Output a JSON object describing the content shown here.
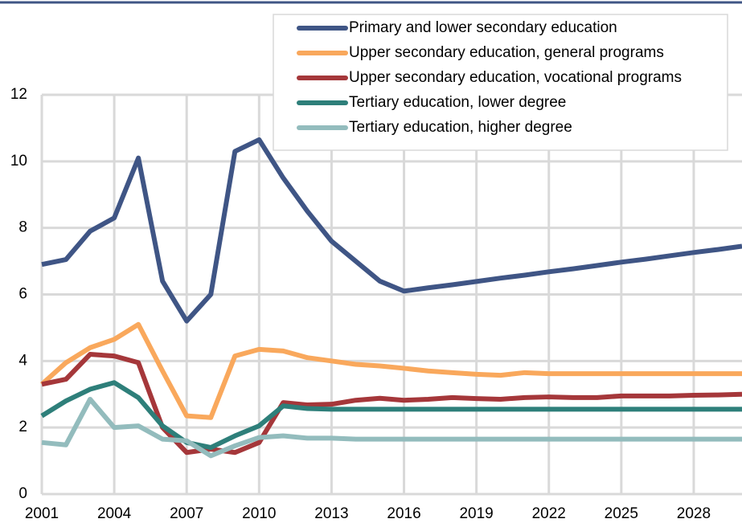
{
  "chart_data": {
    "type": "line",
    "x": [
      2001,
      2002,
      2003,
      2004,
      2005,
      2006,
      2007,
      2008,
      2009,
      2010,
      2011,
      2012,
      2013,
      2014,
      2015,
      2016,
      2017,
      2018,
      2019,
      2020,
      2021,
      2022,
      2023,
      2024,
      2025,
      2026,
      2027,
      2028,
      2029,
      2030
    ],
    "xlim": [
      2001,
      2030
    ],
    "xticks": [
      2001,
      2004,
      2007,
      2010,
      2013,
      2016,
      2019,
      2022,
      2025,
      2028
    ],
    "ylim": [
      0,
      12
    ],
    "yticks": [
      0,
      2,
      4,
      6,
      8,
      10,
      12
    ],
    "grid": true,
    "legend": "top-right",
    "series": [
      {
        "name": "Primary and lower secondary education",
        "color": "#3f5585",
        "values": [
          6.9,
          7.05,
          7.9,
          8.3,
          10.1,
          6.4,
          5.2,
          6.0,
          10.3,
          10.65,
          9.5,
          8.5,
          7.6,
          7.0,
          6.4,
          6.1,
          6.2,
          6.29,
          6.39,
          6.49,
          6.58,
          6.68,
          6.77,
          6.87,
          6.97,
          7.06,
          7.16,
          7.26,
          7.35,
          7.45
        ]
      },
      {
        "name": "Upper secondary education, general programs",
        "color": "#f9a85c",
        "values": [
          3.3,
          3.95,
          4.4,
          4.65,
          5.1,
          3.7,
          2.35,
          2.3,
          4.15,
          4.35,
          4.3,
          4.1,
          4.0,
          3.9,
          3.85,
          3.78,
          3.7,
          3.65,
          3.6,
          3.57,
          3.65,
          3.62,
          3.62,
          3.62,
          3.62,
          3.62,
          3.62,
          3.62,
          3.62,
          3.62
        ]
      },
      {
        "name": "Upper secondary education, vocational programs",
        "color": "#a5373a",
        "values": [
          3.3,
          3.45,
          4.2,
          4.15,
          3.95,
          2.0,
          1.25,
          1.35,
          1.25,
          1.55,
          2.75,
          2.68,
          2.7,
          2.82,
          2.88,
          2.82,
          2.85,
          2.9,
          2.87,
          2.85,
          2.9,
          2.92,
          2.9,
          2.9,
          2.95,
          2.95,
          2.95,
          2.97,
          2.98,
          3.0
        ]
      },
      {
        "name": "Tertiary education, lower degree",
        "color": "#2e7f7a",
        "values": [
          2.35,
          2.8,
          3.15,
          3.35,
          2.9,
          2.05,
          1.55,
          1.4,
          1.75,
          2.05,
          2.65,
          2.57,
          2.55,
          2.55,
          2.55,
          2.55,
          2.55,
          2.55,
          2.55,
          2.55,
          2.55,
          2.55,
          2.55,
          2.55,
          2.55,
          2.55,
          2.55,
          2.55,
          2.55,
          2.55
        ]
      },
      {
        "name": "Tertiary education, higher degree",
        "color": "#93bcbd",
        "values": [
          1.55,
          1.48,
          2.85,
          2.0,
          2.05,
          1.65,
          1.6,
          1.15,
          1.45,
          1.7,
          1.75,
          1.68,
          1.68,
          1.65,
          1.65,
          1.65,
          1.65,
          1.65,
          1.65,
          1.65,
          1.65,
          1.65,
          1.65,
          1.65,
          1.65,
          1.65,
          1.65,
          1.65,
          1.65,
          1.65
        ]
      }
    ]
  }
}
